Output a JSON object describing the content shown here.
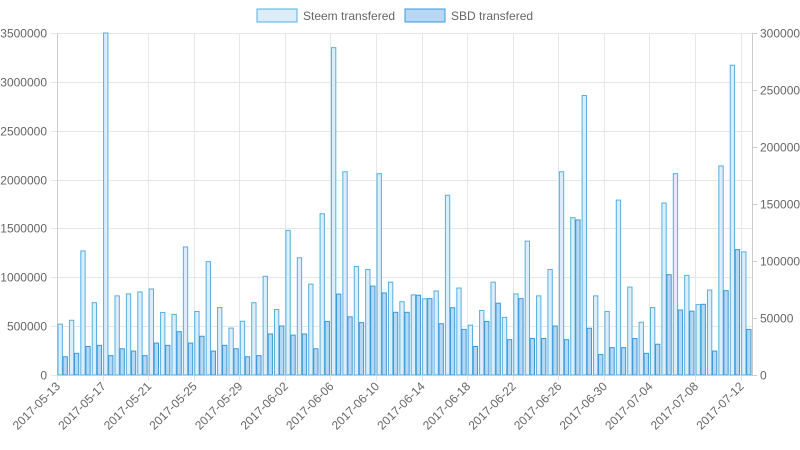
{
  "chart_data": {
    "type": "bar",
    "legend_position": "top-center",
    "grid": true,
    "series": [
      {
        "name": "Steem transfered",
        "axis": "left",
        "fill": "#ddeefa",
        "stroke": "#55b0e0",
        "values": [
          520000,
          560000,
          1270000,
          740000,
          3500000,
          810000,
          830000,
          850000,
          880000,
          640000,
          620000,
          1310000,
          650000,
          1160000,
          690000,
          480000,
          550000,
          740000,
          1010000,
          670000,
          1480000,
          1200000,
          930000,
          1650000,
          3350000,
          2080000,
          1110000,
          1080000,
          2060000,
          950000,
          750000,
          820000,
          780000,
          860000,
          1840000,
          890000,
          510000,
          660000,
          950000,
          590000,
          830000,
          1370000,
          810000,
          1080000,
          2080000,
          1610000,
          2860000,
          810000,
          650000,
          1790000,
          900000,
          540000,
          690000,
          1760000,
          2060000,
          1020000,
          720000,
          870000,
          2140000,
          3170000,
          1260000
        ]
      },
      {
        "name": "SBD transfered",
        "axis": "right",
        "fill": "#b6d8f5",
        "stroke": "#3a9ad9",
        "values": [
          16000,
          19000,
          25000,
          26000,
          17000,
          23000,
          21000,
          17000,
          28000,
          26000,
          38000,
          28000,
          34000,
          21000,
          26000,
          23000,
          16000,
          17000,
          36000,
          43000,
          35000,
          36000,
          23000,
          47000,
          71000,
          51000,
          46000,
          78000,
          72000,
          55000,
          55000,
          70000,
          67000,
          45000,
          59000,
          40000,
          25000,
          47000,
          63000,
          31000,
          67000,
          32000,
          32000,
          43000,
          31000,
          136000,
          41000,
          18000,
          24000,
          24000,
          32000,
          19000,
          27000,
          88000,
          57000,
          56000,
          62000,
          21000,
          74000,
          110000,
          40000
        ]
      }
    ],
    "x_tick_labels": [
      "2017-05-13",
      "2017-05-17",
      "2017-05-21",
      "2017-05-25",
      "2017-05-29",
      "2017-06-02",
      "2017-06-06",
      "2017-06-10",
      "2017-06-14",
      "2017-06-18",
      "2017-06-22",
      "2017-06-26",
      "2017-06-30",
      "2017-07-04",
      "2017-07-08",
      "2017-07-12"
    ],
    "x_tick_every": 4,
    "y_left": {
      "min": 0,
      "max": 3500000,
      "ticks": [
        "0",
        "500000",
        "1000000",
        "1500000",
        "2000000",
        "2500000",
        "3000000",
        "3500000"
      ]
    },
    "y_right": {
      "min": 0,
      "max": 300000,
      "ticks": [
        "0",
        "50000",
        "100000",
        "150000",
        "200000",
        "250000",
        "300000"
      ]
    }
  }
}
